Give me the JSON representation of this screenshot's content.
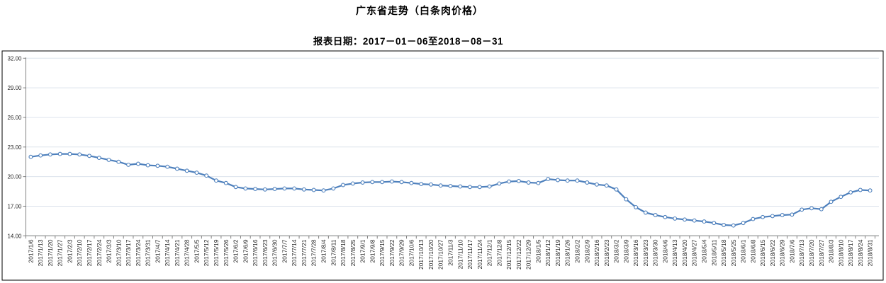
{
  "header": {
    "title": "广东省走势（白条肉价格）",
    "subtitle": "报表日期：2017－01－06至2018－08－31"
  },
  "colors": {
    "line": "#4f81bd",
    "marker_fill": "#ffffff",
    "grid": "#dce3ec",
    "axis": "#808080",
    "frame": "#000000",
    "tick_label": "#262626",
    "background": "#ffffff"
  },
  "chart_data": {
    "type": "line",
    "title": "广东省走势（白条肉价格）",
    "subtitle": "报表日期：2017－01－06至2018－08－31",
    "ylim": [
      14,
      32
    ],
    "ytick_interval": 3,
    "yticks": [
      "32.00",
      "29.00",
      "26.00",
      "23.00",
      "20.00",
      "17.00",
      "14.00"
    ],
    "grid": true,
    "legend": "none",
    "marker": "open-circle",
    "categories": [
      "2017/1/6",
      "2017/1/13",
      "2017/1/20",
      "2017/1/27",
      "2017/2/3",
      "2017/2/10",
      "2017/2/17",
      "2017/2/24",
      "2017/3/3",
      "2017/3/10",
      "2017/3/17",
      "2017/3/24",
      "2017/3/31",
      "2017/4/7",
      "2017/4/14",
      "2017/4/21",
      "2017/4/28",
      "2017/5/5",
      "2017/5/12",
      "2017/5/19",
      "2017/5/26",
      "2017/6/2",
      "2017/6/9",
      "2017/6/16",
      "2017/6/23",
      "2017/6/30",
      "2017/7/7",
      "2017/7/14",
      "2017/7/21",
      "2017/7/28",
      "2017/8/4",
      "2017/8/11",
      "2017/8/18",
      "2017/8/25",
      "2017/9/1",
      "2017/9/8",
      "2017/9/15",
      "2017/9/22",
      "2017/9/29",
      "2017/10/6",
      "2017/10/13",
      "2017/10/20",
      "2017/10/27",
      "2017/11/3",
      "2017/11/10",
      "2017/11/17",
      "2017/11/24",
      "2017/12/1",
      "2017/12/8",
      "2017/12/15",
      "2017/12/22",
      "2017/12/29",
      "2018/1/5",
      "2018/1/12",
      "2018/1/19",
      "2018/1/26",
      "2018/2/2",
      "2018/2/9",
      "2018/2/16",
      "2018/2/23",
      "2018/3/2",
      "2018/3/9",
      "2018/3/16",
      "2018/3/23",
      "2018/3/30",
      "2018/4/6",
      "2018/4/13",
      "2018/4/20",
      "2018/4/27",
      "2018/5/4",
      "2018/5/11",
      "2018/5/18",
      "2018/5/25",
      "2018/6/1",
      "2018/6/8",
      "2018/6/15",
      "2018/6/22",
      "2018/6/29",
      "2018/7/6",
      "2018/7/13",
      "2018/7/20",
      "2018/7/27",
      "2018/8/3",
      "2018/8/10",
      "2018/8/17",
      "2018/8/24",
      "2018/8/31"
    ],
    "values": [
      22.0,
      22.15,
      22.25,
      22.3,
      22.3,
      22.25,
      22.1,
      21.9,
      21.7,
      21.5,
      21.2,
      21.3,
      21.15,
      21.1,
      21.0,
      20.8,
      20.6,
      20.4,
      20.1,
      19.6,
      19.35,
      18.95,
      18.8,
      18.75,
      18.7,
      18.75,
      18.8,
      18.8,
      18.7,
      18.65,
      18.6,
      18.8,
      19.15,
      19.3,
      19.4,
      19.45,
      19.45,
      19.5,
      19.45,
      19.35,
      19.25,
      19.2,
      19.1,
      19.05,
      19.0,
      18.95,
      18.95,
      19.0,
      19.3,
      19.5,
      19.55,
      19.4,
      19.35,
      19.75,
      19.65,
      19.6,
      19.6,
      19.4,
      19.2,
      19.1,
      18.7,
      17.7,
      16.9,
      16.35,
      16.1,
      15.9,
      15.75,
      15.65,
      15.55,
      15.45,
      15.3,
      15.1,
      15.05,
      15.3,
      15.7,
      15.9,
      16.0,
      16.1,
      16.15,
      16.65,
      16.8,
      16.7,
      17.45,
      17.95,
      18.4,
      18.65,
      18.6
    ]
  }
}
